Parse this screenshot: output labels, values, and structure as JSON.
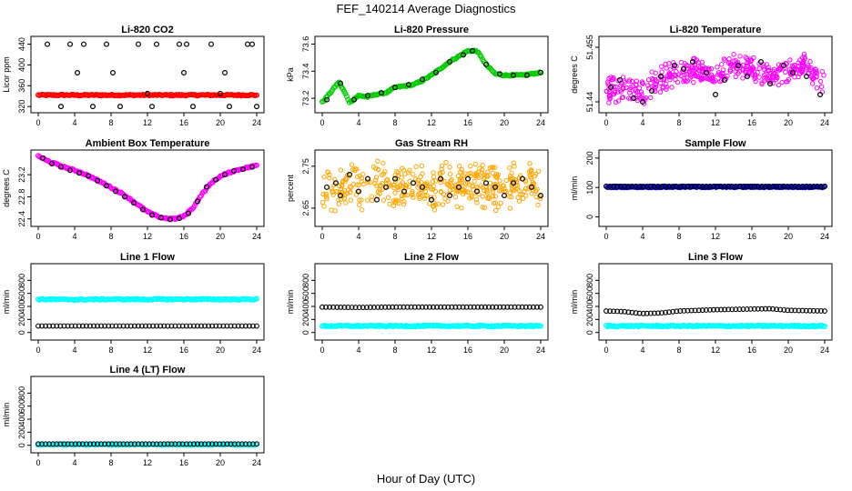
{
  "figure": {
    "title": "FEF_140214  Average Diagnostics",
    "xlabel": "Hour of Day (UTC)"
  },
  "colors": {
    "black": "#000000",
    "red": "#ff0000",
    "green": "#00cc00",
    "magenta": "#ff00ff",
    "orange": "#ffa500",
    "blue": "#0000cc",
    "cyan": "#00ffff"
  },
  "chart_data": [
    {
      "type": "scatter",
      "title": "Li-820 CO2",
      "ylabel": "Licor ppm",
      "xlim": [
        0,
        24
      ],
      "ylim": [
        315,
        448
      ],
      "xticks": [
        0,
        4,
        8,
        12,
        16,
        20,
        24
      ],
      "yticks": [
        320,
        360,
        400,
        440
      ],
      "series": [
        {
          "color": "red",
          "style": "dense",
          "x": [
            0,
            2,
            4,
            6,
            8,
            10,
            12,
            14,
            16,
            18,
            20,
            22,
            24
          ],
          "y": [
            342,
            342,
            342,
            342,
            342,
            342,
            342,
            342,
            342,
            342,
            342,
            342,
            342
          ]
        },
        {
          "color": "black",
          "style": "points",
          "x": [
            1,
            2.5,
            3.5,
            4.3,
            5,
            6,
            7.5,
            8.2,
            9,
            11,
            12,
            12.5,
            13,
            15.5,
            16,
            16.3,
            17,
            19,
            20,
            20.5,
            21,
            23,
            23.5,
            24
          ],
          "y": [
            440,
            320,
            440,
            385,
            440,
            320,
            440,
            385,
            320,
            440,
            345,
            320,
            440,
            440,
            385,
            440,
            320,
            440,
            345,
            385,
            320,
            440,
            440,
            320
          ]
        }
      ]
    },
    {
      "type": "scatter",
      "title": "Li-820 Pressure",
      "ylabel": "kPa",
      "xlim": [
        0,
        24
      ],
      "ylim": [
        73.12,
        73.63
      ],
      "xticks": [
        0,
        4,
        8,
        12,
        16,
        20,
        24
      ],
      "yticks": [
        73.2,
        73.4,
        73.6
      ],
      "series": [
        {
          "color": "green",
          "style": "dense",
          "x": [
            0,
            1,
            1.8,
            2.5,
            3,
            4,
            5,
            6,
            7,
            8,
            9,
            10,
            11,
            12,
            13,
            14,
            15,
            16,
            17,
            18,
            19,
            20,
            21,
            22,
            23,
            24
          ],
          "y": [
            73.17,
            73.25,
            73.32,
            73.24,
            73.17,
            73.22,
            73.21,
            73.23,
            73.24,
            73.28,
            73.29,
            73.3,
            73.33,
            73.37,
            73.42,
            73.47,
            73.51,
            73.55,
            73.55,
            73.45,
            73.38,
            73.37,
            73.37,
            73.37,
            73.38,
            73.39
          ]
        },
        {
          "color": "black",
          "style": "points",
          "x": [
            0.5,
            2,
            3.5,
            5,
            6.5,
            8,
            9.5,
            11,
            12.5,
            14,
            15.5,
            16.5,
            18,
            19.5,
            21,
            22.5,
            24
          ],
          "y": [
            73.19,
            73.31,
            73.19,
            73.22,
            73.24,
            73.28,
            73.3,
            73.34,
            73.39,
            73.47,
            73.52,
            73.55,
            73.45,
            73.38,
            73.37,
            73.37,
            73.39
          ]
        }
      ]
    },
    {
      "type": "scatter",
      "title": "Li-820 Temperature",
      "ylabel": "degrees C",
      "xlim": [
        0,
        24
      ],
      "ylim": [
        51.438,
        51.457
      ],
      "xticks": [
        0,
        4,
        8,
        12,
        16,
        20,
        24
      ],
      "yticks": [
        51.44,
        51.455
      ],
      "series": [
        {
          "color": "magenta",
          "style": "cloud",
          "spread": 0.004,
          "x": [
            0,
            2,
            4,
            6,
            8,
            10,
            12,
            14,
            16,
            18,
            20,
            22,
            24
          ],
          "y": [
            51.443,
            51.444,
            51.443,
            51.446,
            51.448,
            51.449,
            51.447,
            51.45,
            51.449,
            51.447,
            51.449,
            51.45,
            51.444
          ]
        },
        {
          "color": "black",
          "style": "points",
          "x": [
            0.5,
            1.5,
            3,
            4,
            5,
            6,
            7.5,
            8.5,
            9.5,
            11,
            12,
            13,
            14.5,
            15.5,
            17,
            18,
            19.5,
            20.5,
            22,
            23.5
          ],
          "y": [
            51.444,
            51.446,
            51.441,
            51.44,
            51.443,
            51.447,
            51.45,
            51.449,
            51.451,
            51.448,
            51.442,
            51.446,
            51.45,
            51.447,
            51.451,
            51.445,
            51.45,
            51.448,
            51.447,
            51.442
          ]
        }
      ]
    },
    {
      "type": "scatter",
      "title": "Ambient Box Temperature",
      "ylabel": "degrees C",
      "xlim": [
        0,
        24
      ],
      "ylim": [
        22.33,
        23.58
      ],
      "xticks": [
        0,
        4,
        8,
        12,
        16,
        20,
        24
      ],
      "yticks": [
        22.4,
        22.8,
        23.2
      ],
      "series": [
        {
          "color": "magenta",
          "style": "dense",
          "x": [
            0,
            1,
            2,
            3,
            4,
            5,
            6,
            7,
            8,
            9,
            10,
            11,
            12,
            13,
            14,
            15,
            16,
            17,
            18,
            19,
            20,
            21,
            22,
            23,
            24
          ],
          "y": [
            23.54,
            23.45,
            23.39,
            23.33,
            23.28,
            23.22,
            23.14,
            23.06,
            22.97,
            22.88,
            22.77,
            22.65,
            22.53,
            22.45,
            22.41,
            22.4,
            22.45,
            22.6,
            22.85,
            23.05,
            23.17,
            23.24,
            23.29,
            23.33,
            23.37
          ]
        },
        {
          "color": "black",
          "style": "points",
          "x": [
            0.5,
            1.5,
            2.5,
            3.5,
            4.5,
            5.5,
            6.5,
            7.5,
            8.5,
            9.5,
            10.5,
            11.5,
            12.5,
            13.5,
            14.5,
            15.5,
            16.5,
            17.5,
            18.5,
            19.5,
            20.5,
            21.5,
            22.5,
            23.5
          ],
          "y": [
            23.5,
            23.4,
            23.34,
            23.28,
            23.23,
            23.18,
            23.09,
            23.0,
            22.9,
            22.8,
            22.69,
            22.57,
            22.47,
            22.42,
            22.39,
            22.41,
            22.5,
            22.72,
            22.98,
            23.11,
            23.2,
            23.27,
            23.3,
            23.34
          ]
        }
      ]
    },
    {
      "type": "scatter",
      "title": "Gas Stream RH",
      "ylabel": "percent",
      "xlim": [
        0,
        24
      ],
      "ylim": [
        2.615,
        2.78
      ],
      "xticks": [
        0,
        4,
        8,
        12,
        16,
        20,
        24
      ],
      "yticks": [
        2.65,
        2.75
      ],
      "series": [
        {
          "color": "orange",
          "style": "cloud",
          "spread": 0.06,
          "x": [
            0,
            2,
            4,
            6,
            8,
            10,
            12,
            14,
            16,
            18,
            20,
            22,
            24
          ],
          "y": [
            2.69,
            2.69,
            2.7,
            2.71,
            2.7,
            2.7,
            2.7,
            2.71,
            2.7,
            2.7,
            2.7,
            2.71,
            2.7
          ]
        },
        {
          "color": "black",
          "style": "points",
          "x": [
            0.5,
            1.5,
            2,
            3,
            4,
            5,
            6,
            7,
            8,
            9,
            10,
            11,
            12,
            13,
            14,
            15,
            16,
            17,
            18,
            19,
            20,
            21,
            22,
            23,
            24
          ],
          "y": [
            2.7,
            2.71,
            2.68,
            2.73,
            2.69,
            2.72,
            2.67,
            2.7,
            2.72,
            2.69,
            2.71,
            2.7,
            2.67,
            2.72,
            2.68,
            2.7,
            2.72,
            2.69,
            2.71,
            2.7,
            2.68,
            2.71,
            2.72,
            2.7,
            2.68
          ]
        }
      ]
    },
    {
      "type": "scatter",
      "title": "Sample Flow",
      "ylabel": "ml/min",
      "xlim": [
        0,
        24
      ],
      "ylim": [
        -20,
        215
      ],
      "xticks": [
        0,
        4,
        8,
        12,
        16,
        20,
        24
      ],
      "yticks": [
        0,
        100,
        200
      ],
      "series": [
        {
          "color": "blue",
          "style": "dense",
          "x": [
            0,
            4,
            8,
            12,
            16,
            20,
            24
          ],
          "y": [
            102,
            102,
            102,
            102,
            102,
            102,
            102
          ]
        },
        {
          "color": "black",
          "style": "line-points",
          "x": [
            0,
            4,
            8,
            12,
            16,
            20,
            24
          ],
          "y": [
            104,
            104,
            104,
            104,
            104,
            104,
            104
          ]
        }
      ]
    },
    {
      "type": "scatter",
      "title": "Line 1 Flow",
      "ylabel": "ml/min",
      "xlim": [
        0,
        24
      ],
      "ylim": [
        -60,
        1000
      ],
      "xticks": [
        0,
        4,
        8,
        12,
        16,
        20,
        24
      ],
      "yticks": [
        0,
        200,
        400,
        600,
        800
      ],
      "series": [
        {
          "color": "cyan",
          "style": "dense",
          "x": [
            0,
            4,
            8,
            12,
            16,
            20,
            24
          ],
          "y": [
            510,
            505,
            510,
            508,
            510,
            508,
            510
          ]
        },
        {
          "color": "black",
          "style": "line-points",
          "x": [
            0,
            4,
            8,
            12,
            16,
            20,
            24
          ],
          "y": [
            100,
            100,
            100,
            100,
            100,
            100,
            100
          ]
        }
      ]
    },
    {
      "type": "scatter",
      "title": "Line 2 Flow",
      "ylabel": "ml/min",
      "xlim": [
        0,
        24
      ],
      "ylim": [
        -60,
        1000
      ],
      "xticks": [
        0,
        4,
        8,
        12,
        16,
        20,
        24
      ],
      "yticks": [
        0,
        200,
        400,
        600,
        800
      ],
      "series": [
        {
          "color": "cyan",
          "style": "dense",
          "x": [
            0,
            4,
            8,
            12,
            16,
            20,
            24
          ],
          "y": [
            100,
            100,
            100,
            100,
            100,
            100,
            100
          ]
        },
        {
          "color": "black",
          "style": "line-points",
          "x": [
            0,
            4,
            8,
            12,
            16,
            20,
            24
          ],
          "y": [
            390,
            385,
            390,
            390,
            390,
            390,
            390
          ]
        }
      ]
    },
    {
      "type": "scatter",
      "title": "Line 3 Flow",
      "ylabel": "ml/min",
      "xlim": [
        0,
        24
      ],
      "ylim": [
        -60,
        1000
      ],
      "xticks": [
        0,
        4,
        8,
        12,
        16,
        20,
        24
      ],
      "yticks": [
        0,
        200,
        400,
        600,
        800
      ],
      "series": [
        {
          "color": "cyan",
          "style": "dense",
          "x": [
            0,
            4,
            8,
            12,
            16,
            20,
            24
          ],
          "y": [
            100,
            100,
            100,
            100,
            100,
            100,
            100
          ]
        },
        {
          "color": "black",
          "style": "line-points",
          "x": [
            0,
            2,
            4,
            6,
            8,
            12,
            16,
            18,
            20,
            24
          ],
          "y": [
            330,
            320,
            290,
            300,
            330,
            350,
            360,
            365,
            340,
            330
          ]
        }
      ]
    },
    {
      "type": "scatter",
      "title": "Line 4 (LT) Flow",
      "ylabel": "ml/min",
      "xlim": [
        0,
        24
      ],
      "ylim": [
        -60,
        1000
      ],
      "xticks": [
        0,
        4,
        8,
        12,
        16,
        20,
        24
      ],
      "yticks": [
        0,
        200,
        400,
        600,
        800
      ],
      "series": [
        {
          "color": "cyan",
          "style": "dense",
          "x": [
            0,
            4,
            8,
            12,
            16,
            20,
            24
          ],
          "y": [
            10,
            10,
            10,
            10,
            10,
            10,
            10
          ]
        },
        {
          "color": "black",
          "style": "line-points",
          "x": [
            0,
            4,
            8,
            12,
            16,
            20,
            24
          ],
          "y": [
            20,
            20,
            20,
            20,
            20,
            20,
            20
          ]
        }
      ]
    }
  ]
}
